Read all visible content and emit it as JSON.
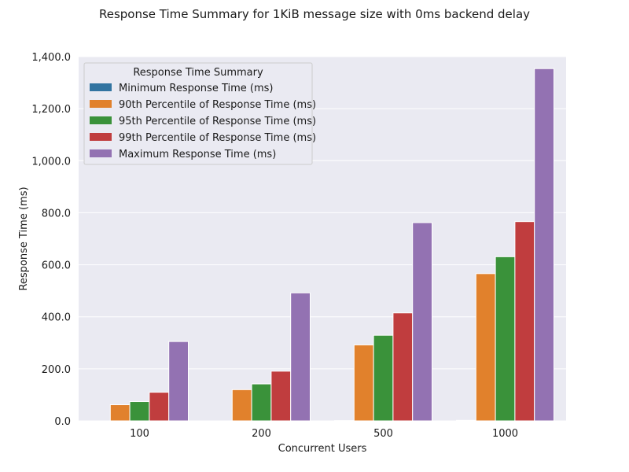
{
  "chart_data": {
    "type": "bar",
    "title": "Response Time Summary for 1KiB message size with 0ms backend delay",
    "xlabel": "Concurrent Users",
    "ylabel": "Response Time (ms)",
    "categories": [
      "100",
      "200",
      "500",
      "1000"
    ],
    "ylim": [
      0,
      1400
    ],
    "yticks": [
      0,
      200,
      400,
      600,
      800,
      1000,
      1200,
      1400
    ],
    "ytick_labels": [
      "0.0",
      "200.0",
      "400.0",
      "600.0",
      "800.0",
      "1,000.0",
      "1,200.0",
      "1,400.0"
    ],
    "grid": true,
    "legend": {
      "title": "Response Time Summary",
      "placement": "top-left"
    },
    "series": [
      {
        "name": "Minimum Response Time (ms)",
        "color": "#3274a1",
        "values": [
          0,
          0,
          1,
          2
        ]
      },
      {
        "name": "90th Percentile of Response Time (ms)",
        "color": "#e1812c",
        "values": [
          62,
          120,
          292,
          566
        ]
      },
      {
        "name": "95th Percentile of Response Time (ms)",
        "color": "#3a923a",
        "values": [
          74,
          142,
          329,
          631
        ]
      },
      {
        "name": "99th Percentile of Response Time (ms)",
        "color": "#c03d3e",
        "values": [
          110,
          191,
          415,
          766
        ]
      },
      {
        "name": "Maximum Response Time (ms)",
        "color": "#9372b2",
        "values": [
          305,
          492,
          762,
          1354
        ]
      }
    ]
  }
}
